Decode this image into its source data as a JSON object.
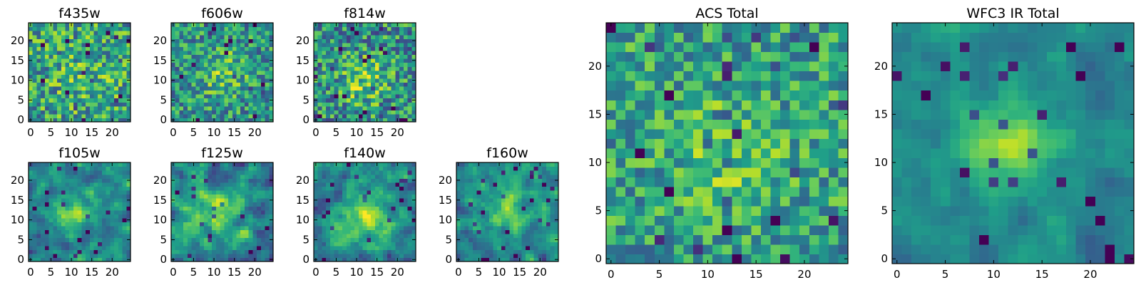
{
  "figure": {
    "description_type": "image panels (heatmap cutouts)"
  },
  "colors": {
    "frame": "#000000",
    "background": "#ffffff",
    "viridis": [
      "#440154",
      "#482878",
      "#3e4989",
      "#31688e",
      "#26828e",
      "#1f9e89",
      "#35b779",
      "#6ece58",
      "#b5de2b",
      "#fde725"
    ]
  },
  "chart_data": [
    {
      "type": "heatmap",
      "title": "f435w",
      "size": 25,
      "xticks": [
        0,
        5,
        10,
        15,
        20
      ],
      "yticks": [
        0,
        5,
        10,
        15,
        20
      ],
      "xlim": [
        -0.5,
        24.5
      ],
      "ylim": [
        -0.5,
        24.5
      ],
      "colormap": "viridis",
      "seed": 11,
      "center": [
        13,
        11
      ],
      "sigma": 6,
      "amplitude": 0.1,
      "base": 0.56,
      "noise": 0.2,
      "smooth": 0
    },
    {
      "type": "heatmap",
      "title": "f606w",
      "size": 25,
      "xticks": [
        0,
        5,
        10,
        15,
        20
      ],
      "yticks": [
        0,
        5,
        10,
        15,
        20
      ],
      "xlim": [
        -0.5,
        24.5
      ],
      "ylim": [
        -0.5,
        24.5
      ],
      "colormap": "viridis",
      "seed": 23,
      "center": [
        12,
        12
      ],
      "sigma": 4,
      "amplitude": 0.22,
      "base": 0.52,
      "noise": 0.18,
      "smooth": 0
    },
    {
      "type": "heatmap",
      "title": "f814w",
      "size": 25,
      "xticks": [
        0,
        5,
        10,
        15,
        20
      ],
      "yticks": [
        0,
        5,
        10,
        15,
        20
      ],
      "xlim": [
        -0.5,
        24.5
      ],
      "ylim": [
        -0.5,
        24.5
      ],
      "colormap": "viridis",
      "seed": 37,
      "center": [
        12,
        10
      ],
      "sigma": 4,
      "amplitude": 0.3,
      "base": 0.5,
      "noise": 0.2,
      "smooth": 0
    },
    {
      "type": "heatmap",
      "title": "f105w",
      "size": 25,
      "xticks": [
        0,
        5,
        10,
        15,
        20
      ],
      "yticks": [
        0,
        5,
        10,
        15,
        20
      ],
      "xlim": [
        -0.5,
        24.5
      ],
      "ylim": [
        -0.5,
        24.5
      ],
      "colormap": "viridis",
      "seed": 41,
      "center": [
        11,
        12
      ],
      "sigma": 3.5,
      "amplitude": 0.35,
      "base": 0.45,
      "noise": 0.18,
      "smooth": 1
    },
    {
      "type": "heatmap",
      "title": "f125w",
      "size": 25,
      "xticks": [
        0,
        5,
        10,
        15,
        20
      ],
      "yticks": [
        0,
        5,
        10,
        15,
        20
      ],
      "xlim": [
        -0.5,
        24.5
      ],
      "ylim": [
        -0.5,
        24.5
      ],
      "colormap": "viridis",
      "seed": 53,
      "center": [
        11,
        12
      ],
      "sigma": 4,
      "amplitude": 0.3,
      "base": 0.48,
      "noise": 0.2,
      "smooth": 1
    },
    {
      "type": "heatmap",
      "title": "f140w",
      "size": 25,
      "xticks": [
        0,
        5,
        10,
        15,
        20
      ],
      "yticks": [
        0,
        5,
        10,
        15,
        20
      ],
      "xlim": [
        -0.5,
        24.5
      ],
      "ylim": [
        -0.5,
        24.5
      ],
      "colormap": "viridis",
      "seed": 67,
      "center": [
        12,
        11
      ],
      "sigma": 4.5,
      "amplitude": 0.38,
      "base": 0.46,
      "noise": 0.18,
      "smooth": 1
    },
    {
      "type": "heatmap",
      "title": "f160w",
      "size": 25,
      "xticks": [
        0,
        5,
        10,
        15,
        20
      ],
      "yticks": [
        0,
        5,
        10,
        15,
        20
      ],
      "xlim": [
        -0.5,
        24.5
      ],
      "ylim": [
        -0.5,
        24.5
      ],
      "colormap": "viridis",
      "seed": 79,
      "center": [
        12,
        13
      ],
      "sigma": 4,
      "amplitude": 0.32,
      "base": 0.48,
      "noise": 0.17,
      "smooth": 1
    },
    {
      "type": "heatmap",
      "title": "ACS Total",
      "size": 25,
      "xticks": [
        0,
        5,
        10,
        15,
        20
      ],
      "yticks": [
        0,
        5,
        10,
        15,
        20
      ],
      "xlim": [
        -0.5,
        24.5
      ],
      "ylim": [
        -0.5,
        24.5
      ],
      "colormap": "viridis",
      "seed": 97,
      "center": [
        12,
        11
      ],
      "sigma": 4,
      "amplitude": 0.18,
      "base": 0.56,
      "noise": 0.16,
      "smooth": 0
    },
    {
      "type": "heatmap",
      "title": "WFC3 IR Total",
      "size": 25,
      "xticks": [
        0,
        5,
        10,
        15,
        20
      ],
      "yticks": [
        0,
        5,
        10,
        15,
        20
      ],
      "xlim": [
        -0.5,
        24.5
      ],
      "ylim": [
        -0.5,
        24.5
      ],
      "colormap": "viridis",
      "seed": 131,
      "center": [
        12,
        12
      ],
      "sigma": 3.2,
      "amplitude": 0.42,
      "base": 0.46,
      "noise": 0.1,
      "smooth": 1
    }
  ]
}
